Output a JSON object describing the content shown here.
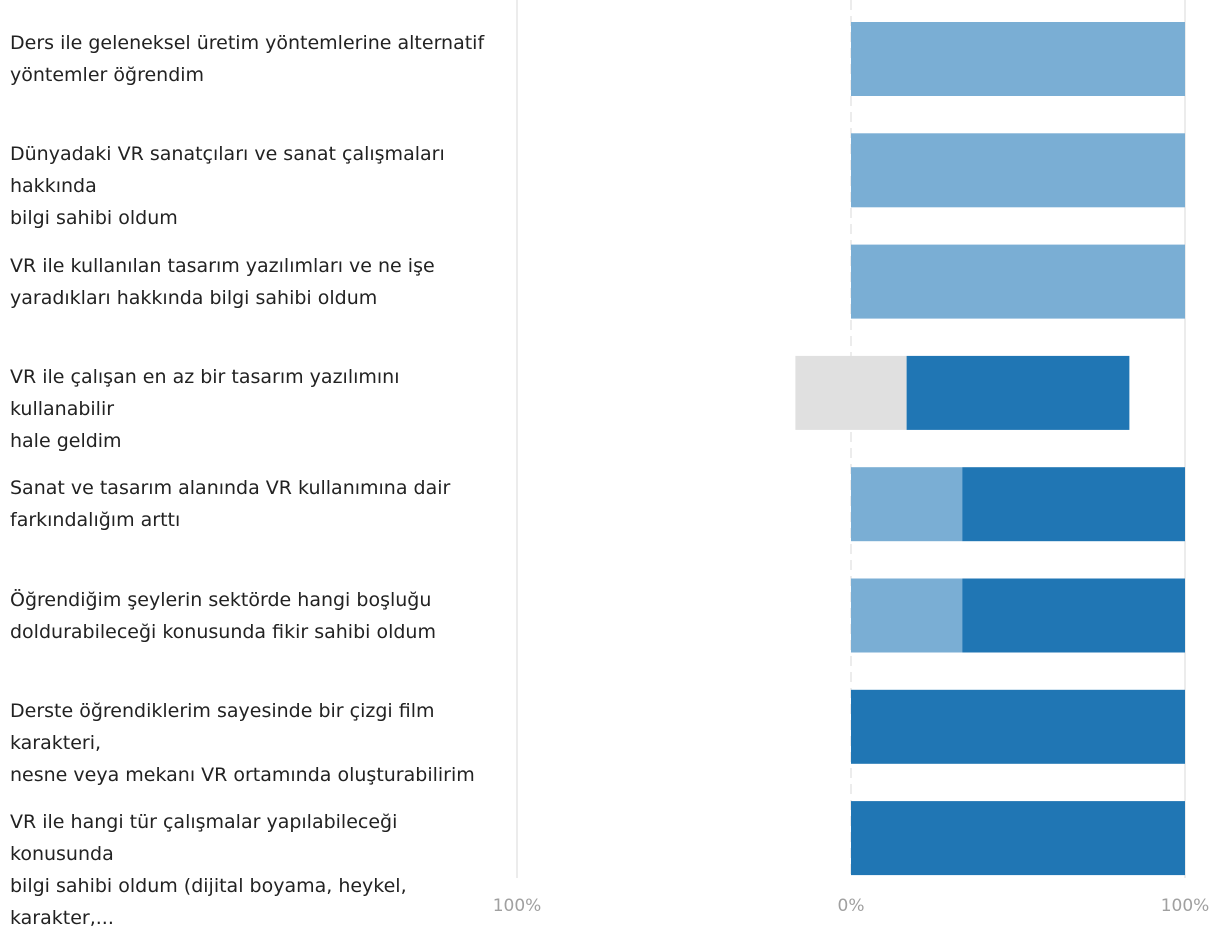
{
  "chart_data": {
    "type": "bar",
    "orientation": "horizontal",
    "stacked": "diverging",
    "categories": [
      "Ders ile geleneksel üretim yöntemlerine alternatif\nyöntemler öğrendim",
      "Dünyadaki VR sanatçıları ve sanat çalışmaları hakkında\nbilgi sahibi oldum",
      "VR ile kullanılan tasarım yazılımları ve ne işe\nyaradıkları hakkında bilgi sahibi oldum",
      "VR ile çalışan en az bir tasarım yazılımını kullanabilir\nhale geldim",
      "Sanat ve tasarım alanında VR kullanımına dair\nfarkındalığım arttı",
      "Öğrendiğim şeylerin sektörde hangi boşluğu\ndoldurabileceği konusunda fikir sahibi oldum",
      "Derste öğrendiklerim sayesinde bir çizgi film karakteri,\nnesne veya mekanı VR ortamında oluşturabilirim",
      "VR ile hangi tür çalışmalar yapılabileceği konusunda\nbilgi sahibi oldum (dijital boyama, heykel, karakter,..."
    ],
    "series": [
      {
        "key": "neutral",
        "color": "#e0e0e0",
        "values": [
          0,
          0,
          0,
          33.3,
          0,
          0,
          0,
          0
        ],
        "centered": true
      },
      {
        "key": "light",
        "color": "#7aaed4",
        "values": [
          100,
          100,
          100,
          0,
          33.3,
          33.3,
          0,
          0
        ]
      },
      {
        "key": "dark",
        "color": "#2076b4",
        "values": [
          0,
          0,
          0,
          66.7,
          66.7,
          66.7,
          100,
          100
        ]
      }
    ],
    "xlim": [
      -100,
      100
    ],
    "xticks": [
      "100%",
      "0%",
      "100%"
    ],
    "grid": true,
    "legend": "none"
  }
}
